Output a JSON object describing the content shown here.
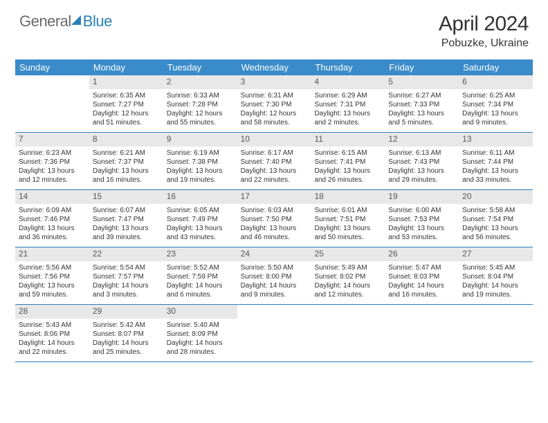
{
  "logo": {
    "part1": "General",
    "part2": "Blue"
  },
  "title": "April 2024",
  "location": "Pobuzke, Ukraine",
  "colors": {
    "header_bg": "#3a8bc9",
    "week_border": "#2a7fba",
    "daynum_bg": "#e8e8e8",
    "logo_blue": "#2a7fba",
    "logo_gray": "#6a6a6a"
  },
  "days_of_week": [
    "Sunday",
    "Monday",
    "Tuesday",
    "Wednesday",
    "Thursday",
    "Friday",
    "Saturday"
  ],
  "weeks": [
    [
      {
        "n": "",
        "sunrise": "",
        "sunset": "",
        "daylight": ""
      },
      {
        "n": "1",
        "sunrise": "Sunrise: 6:35 AM",
        "sunset": "Sunset: 7:27 PM",
        "daylight": "Daylight: 12 hours and 51 minutes."
      },
      {
        "n": "2",
        "sunrise": "Sunrise: 6:33 AM",
        "sunset": "Sunset: 7:28 PM",
        "daylight": "Daylight: 12 hours and 55 minutes."
      },
      {
        "n": "3",
        "sunrise": "Sunrise: 6:31 AM",
        "sunset": "Sunset: 7:30 PM",
        "daylight": "Daylight: 12 hours and 58 minutes."
      },
      {
        "n": "4",
        "sunrise": "Sunrise: 6:29 AM",
        "sunset": "Sunset: 7:31 PM",
        "daylight": "Daylight: 13 hours and 2 minutes."
      },
      {
        "n": "5",
        "sunrise": "Sunrise: 6:27 AM",
        "sunset": "Sunset: 7:33 PM",
        "daylight": "Daylight: 13 hours and 5 minutes."
      },
      {
        "n": "6",
        "sunrise": "Sunrise: 6:25 AM",
        "sunset": "Sunset: 7:34 PM",
        "daylight": "Daylight: 13 hours and 9 minutes."
      }
    ],
    [
      {
        "n": "7",
        "sunrise": "Sunrise: 6:23 AM",
        "sunset": "Sunset: 7:36 PM",
        "daylight": "Daylight: 13 hours and 12 minutes."
      },
      {
        "n": "8",
        "sunrise": "Sunrise: 6:21 AM",
        "sunset": "Sunset: 7:37 PM",
        "daylight": "Daylight: 13 hours and 16 minutes."
      },
      {
        "n": "9",
        "sunrise": "Sunrise: 6:19 AM",
        "sunset": "Sunset: 7:38 PM",
        "daylight": "Daylight: 13 hours and 19 minutes."
      },
      {
        "n": "10",
        "sunrise": "Sunrise: 6:17 AM",
        "sunset": "Sunset: 7:40 PM",
        "daylight": "Daylight: 13 hours and 22 minutes."
      },
      {
        "n": "11",
        "sunrise": "Sunrise: 6:15 AM",
        "sunset": "Sunset: 7:41 PM",
        "daylight": "Daylight: 13 hours and 26 minutes."
      },
      {
        "n": "12",
        "sunrise": "Sunrise: 6:13 AM",
        "sunset": "Sunset: 7:43 PM",
        "daylight": "Daylight: 13 hours and 29 minutes."
      },
      {
        "n": "13",
        "sunrise": "Sunrise: 6:11 AM",
        "sunset": "Sunset: 7:44 PM",
        "daylight": "Daylight: 13 hours and 33 minutes."
      }
    ],
    [
      {
        "n": "14",
        "sunrise": "Sunrise: 6:09 AM",
        "sunset": "Sunset: 7:46 PM",
        "daylight": "Daylight: 13 hours and 36 minutes."
      },
      {
        "n": "15",
        "sunrise": "Sunrise: 6:07 AM",
        "sunset": "Sunset: 7:47 PM",
        "daylight": "Daylight: 13 hours and 39 minutes."
      },
      {
        "n": "16",
        "sunrise": "Sunrise: 6:05 AM",
        "sunset": "Sunset: 7:49 PM",
        "daylight": "Daylight: 13 hours and 43 minutes."
      },
      {
        "n": "17",
        "sunrise": "Sunrise: 6:03 AM",
        "sunset": "Sunset: 7:50 PM",
        "daylight": "Daylight: 13 hours and 46 minutes."
      },
      {
        "n": "18",
        "sunrise": "Sunrise: 6:01 AM",
        "sunset": "Sunset: 7:51 PM",
        "daylight": "Daylight: 13 hours and 50 minutes."
      },
      {
        "n": "19",
        "sunrise": "Sunrise: 6:00 AM",
        "sunset": "Sunset: 7:53 PM",
        "daylight": "Daylight: 13 hours and 53 minutes."
      },
      {
        "n": "20",
        "sunrise": "Sunrise: 5:58 AM",
        "sunset": "Sunset: 7:54 PM",
        "daylight": "Daylight: 13 hours and 56 minutes."
      }
    ],
    [
      {
        "n": "21",
        "sunrise": "Sunrise: 5:56 AM",
        "sunset": "Sunset: 7:56 PM",
        "daylight": "Daylight: 13 hours and 59 minutes."
      },
      {
        "n": "22",
        "sunrise": "Sunrise: 5:54 AM",
        "sunset": "Sunset: 7:57 PM",
        "daylight": "Daylight: 14 hours and 3 minutes."
      },
      {
        "n": "23",
        "sunrise": "Sunrise: 5:52 AM",
        "sunset": "Sunset: 7:59 PM",
        "daylight": "Daylight: 14 hours and 6 minutes."
      },
      {
        "n": "24",
        "sunrise": "Sunrise: 5:50 AM",
        "sunset": "Sunset: 8:00 PM",
        "daylight": "Daylight: 14 hours and 9 minutes."
      },
      {
        "n": "25",
        "sunrise": "Sunrise: 5:49 AM",
        "sunset": "Sunset: 8:02 PM",
        "daylight": "Daylight: 14 hours and 12 minutes."
      },
      {
        "n": "26",
        "sunrise": "Sunrise: 5:47 AM",
        "sunset": "Sunset: 8:03 PM",
        "daylight": "Daylight: 14 hours and 16 minutes."
      },
      {
        "n": "27",
        "sunrise": "Sunrise: 5:45 AM",
        "sunset": "Sunset: 8:04 PM",
        "daylight": "Daylight: 14 hours and 19 minutes."
      }
    ],
    [
      {
        "n": "28",
        "sunrise": "Sunrise: 5:43 AM",
        "sunset": "Sunset: 8:06 PM",
        "daylight": "Daylight: 14 hours and 22 minutes."
      },
      {
        "n": "29",
        "sunrise": "Sunrise: 5:42 AM",
        "sunset": "Sunset: 8:07 PM",
        "daylight": "Daylight: 14 hours and 25 minutes."
      },
      {
        "n": "30",
        "sunrise": "Sunrise: 5:40 AM",
        "sunset": "Sunset: 8:09 PM",
        "daylight": "Daylight: 14 hours and 28 minutes."
      },
      {
        "n": "",
        "sunrise": "",
        "sunset": "",
        "daylight": ""
      },
      {
        "n": "",
        "sunrise": "",
        "sunset": "",
        "daylight": ""
      },
      {
        "n": "",
        "sunrise": "",
        "sunset": "",
        "daylight": ""
      },
      {
        "n": "",
        "sunrise": "",
        "sunset": "",
        "daylight": ""
      }
    ]
  ]
}
